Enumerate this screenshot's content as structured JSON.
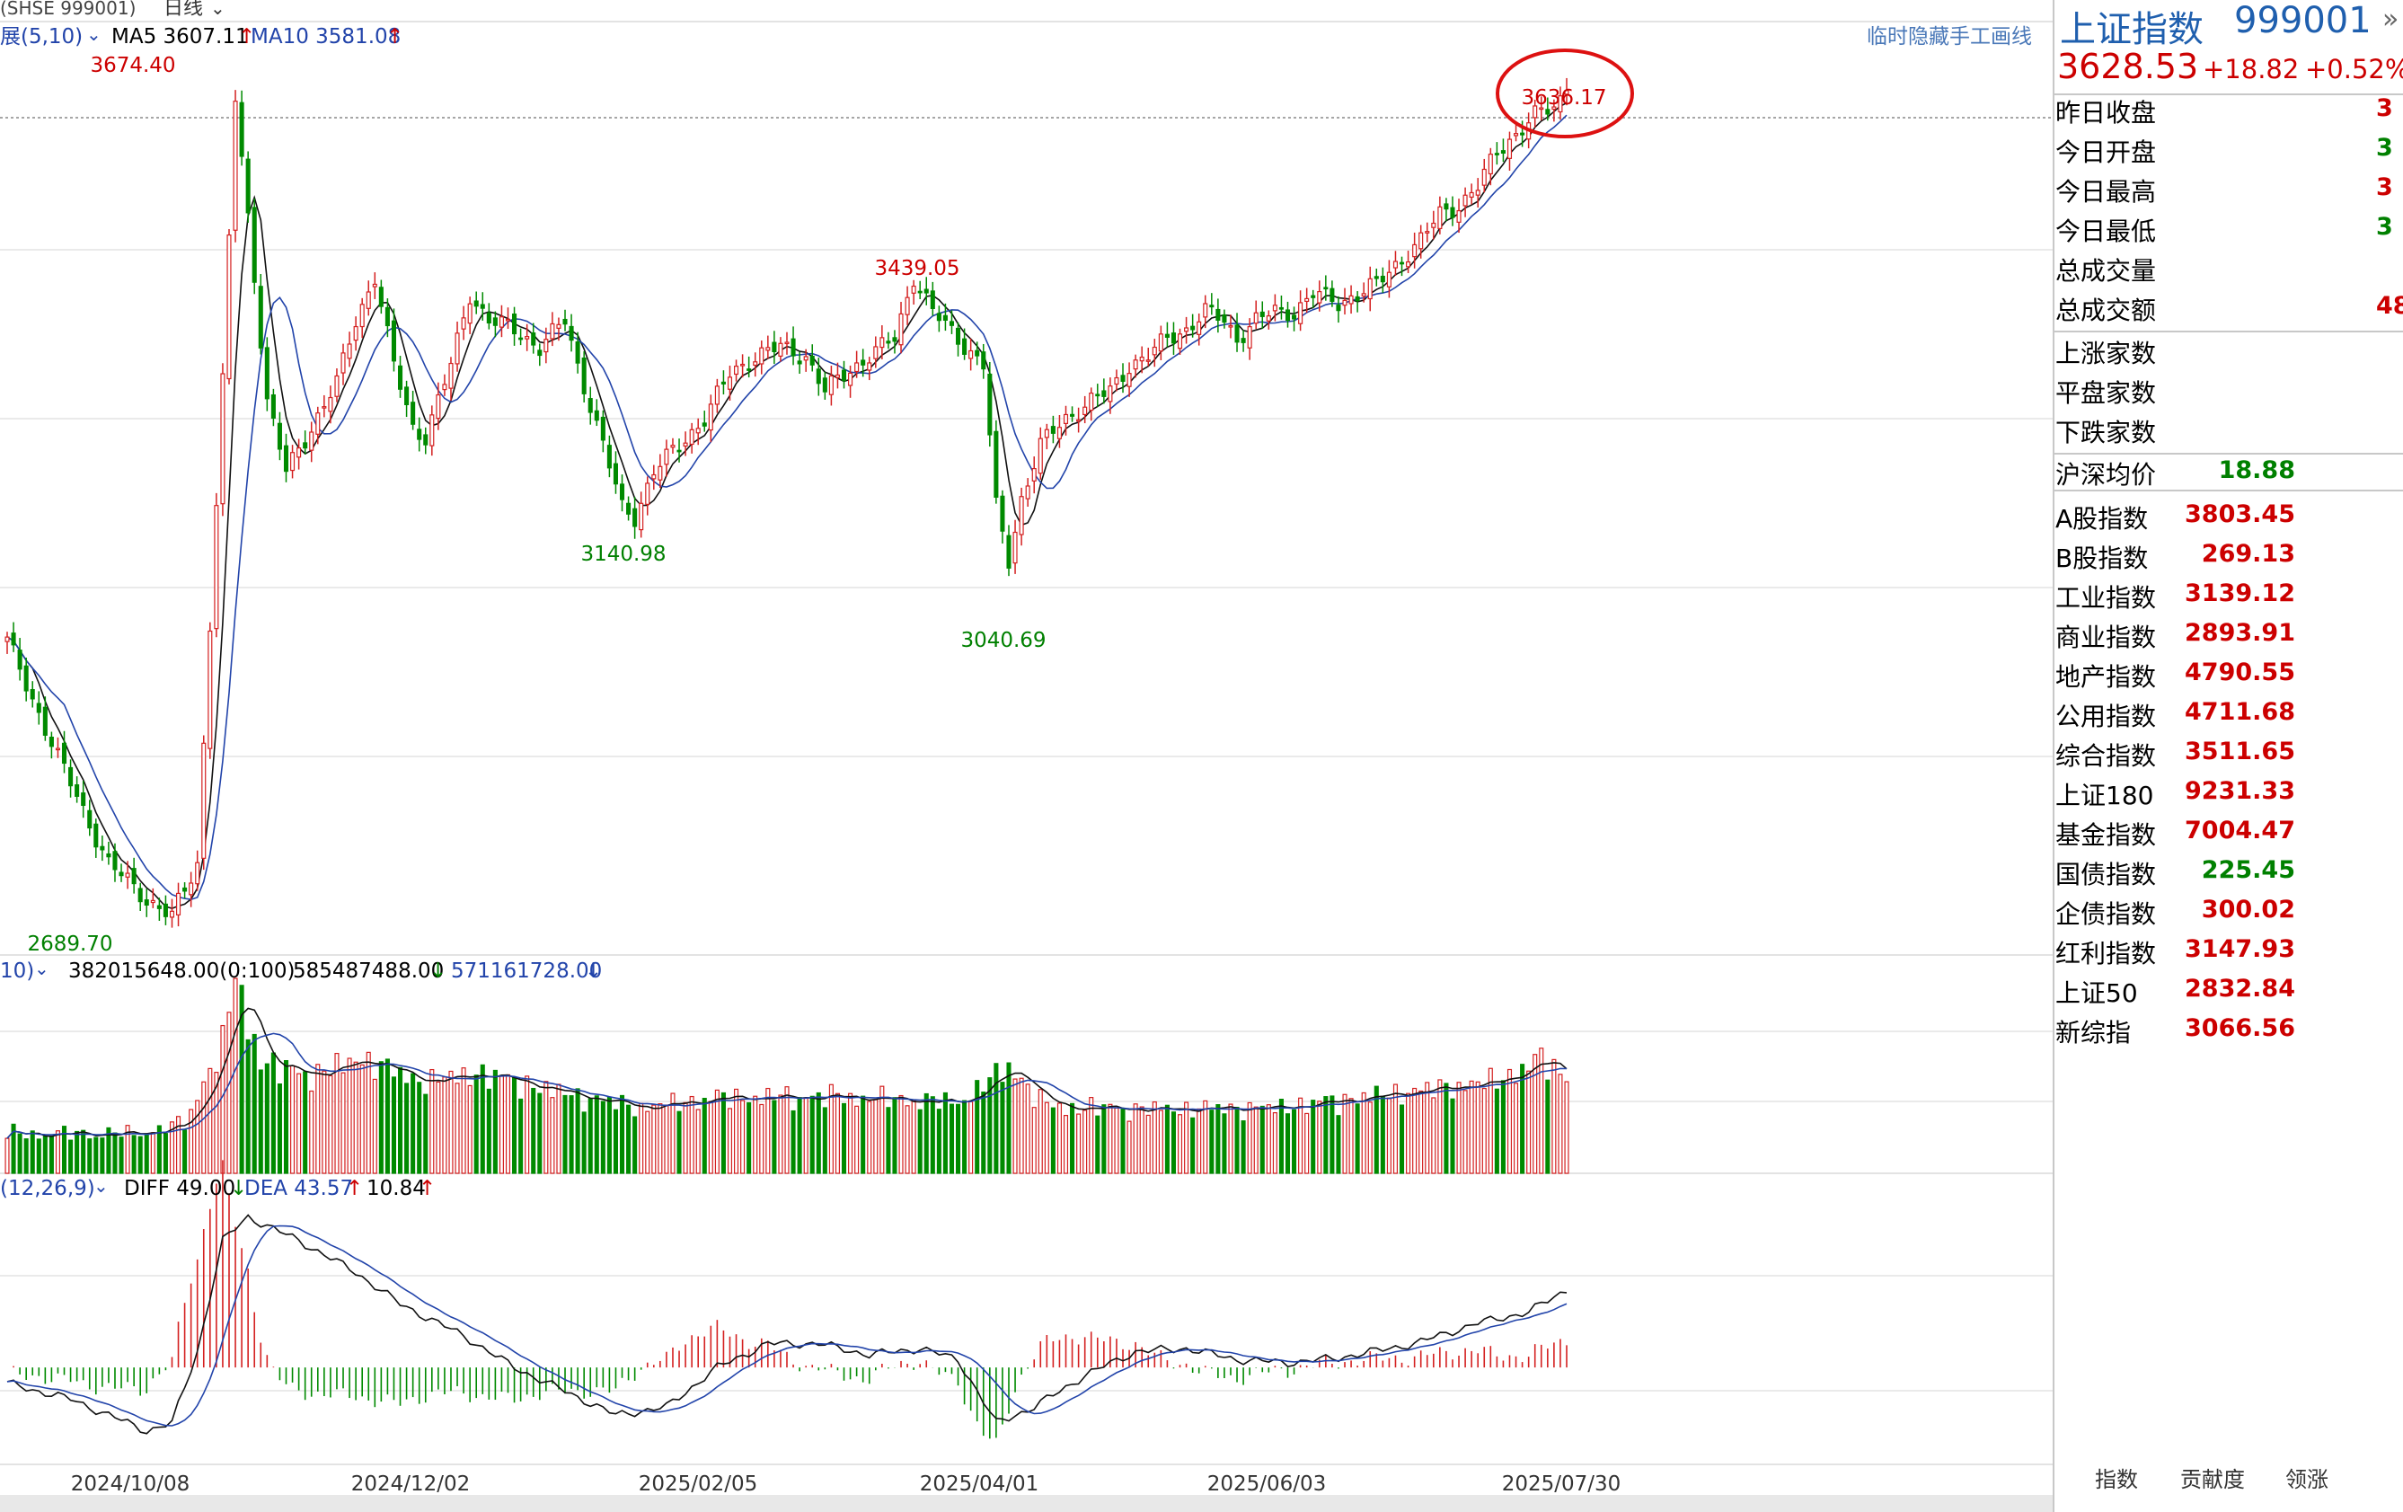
{
  "chart_data": {
    "type": "candlestick",
    "symbol_header": "(SHSE 999001)",
    "period": "日线",
    "main_indicator": "展(5,10)",
    "ma5": "MA5 3607.11",
    "ma10": "MA10 3581.08",
    "hand_draw_hint": "临时隐藏手工画线",
    "annotations": {
      "high_2024": "3674.40",
      "low_2024": "2689.70",
      "low_feb": "3140.98",
      "high_mar": "3439.05",
      "low_apr": "3040.69",
      "latest_high": "3636.17"
    },
    "volume_indicator": "10)",
    "volume_values": [
      "382015648.00(0:100)",
      "585487488.00",
      "571161728.00"
    ],
    "macd_indicator": "(12,26,9)",
    "macd_diff": "DIFF 49.00",
    "macd_dea": "DEA 43.57",
    "macd_value": "10.84",
    "x_labels": [
      "2024/10/08",
      "2024/12/02",
      "2025/02/05",
      "2025/04/01",
      "2025/06/03",
      "2025/07/30"
    ],
    "ylim": [
      2660,
      3700
    ],
    "anchors": [
      [
        0,
        3010
      ],
      [
        8,
        2880
      ],
      [
        16,
        2760
      ],
      [
        22,
        2720
      ],
      [
        26,
        2700
      ],
      [
        30,
        2760
      ],
      [
        34,
        3300
      ],
      [
        36,
        3620
      ],
      [
        39,
        3420
      ],
      [
        41,
        3280
      ],
      [
        44,
        3200
      ],
      [
        48,
        3250
      ],
      [
        52,
        3300
      ],
      [
        55,
        3370
      ],
      [
        58,
        3420
      ],
      [
        61,
        3320
      ],
      [
        64,
        3250
      ],
      [
        66,
        3240
      ],
      [
        70,
        3320
      ],
      [
        73,
        3400
      ],
      [
        76,
        3370
      ],
      [
        80,
        3360
      ],
      [
        84,
        3340
      ],
      [
        88,
        3370
      ],
      [
        90,
        3320
      ],
      [
        94,
        3230
      ],
      [
        97,
        3160
      ],
      [
        99,
        3150
      ],
      [
        102,
        3200
      ],
      [
        106,
        3230
      ],
      [
        110,
        3260
      ],
      [
        114,
        3310
      ],
      [
        118,
        3330
      ],
      [
        122,
        3340
      ],
      [
        126,
        3330
      ],
      [
        129,
        3290
      ],
      [
        132,
        3310
      ],
      [
        136,
        3330
      ],
      [
        140,
        3350
      ],
      [
        143,
        3420
      ],
      [
        146,
        3380
      ],
      [
        150,
        3350
      ],
      [
        154,
        3320
      ],
      [
        156,
        3160
      ],
      [
        158,
        3100
      ],
      [
        160,
        3170
      ],
      [
        163,
        3230
      ],
      [
        167,
        3260
      ],
      [
        171,
        3280
      ],
      [
        174,
        3290
      ],
      [
        177,
        3320
      ],
      [
        180,
        3330
      ],
      [
        183,
        3350
      ],
      [
        186,
        3360
      ],
      [
        189,
        3380
      ],
      [
        192,
        3370
      ],
      [
        194,
        3350
      ],
      [
        197,
        3370
      ],
      [
        200,
        3380
      ],
      [
        203,
        3380
      ],
      [
        206,
        3400
      ],
      [
        210,
        3390
      ],
      [
        213,
        3400
      ],
      [
        216,
        3410
      ],
      [
        220,
        3440
      ],
      [
        223,
        3460
      ],
      [
        226,
        3490
      ],
      [
        229,
        3500
      ],
      [
        232,
        3520
      ],
      [
        235,
        3560
      ],
      [
        238,
        3580
      ],
      [
        241,
        3600
      ],
      [
        244,
        3610
      ],
      [
        246,
        3628.53
      ]
    ],
    "volume_ylim": [
      0,
      1300000000
    ],
    "volume_anchors": [
      [
        0,
        240000000
      ],
      [
        20,
        240000000
      ],
      [
        28,
        300000000
      ],
      [
        34,
        800000000
      ],
      [
        36,
        1200000000
      ],
      [
        40,
        680000000
      ],
      [
        48,
        600000000
      ],
      [
        56,
        700000000
      ],
      [
        65,
        560000000
      ],
      [
        75,
        610000000
      ],
      [
        90,
        470000000
      ],
      [
        100,
        400000000
      ],
      [
        112,
        460000000
      ],
      [
        130,
        470000000
      ],
      [
        150,
        430000000
      ],
      [
        158,
        650000000
      ],
      [
        164,
        410000000
      ],
      [
        180,
        390000000
      ],
      [
        200,
        400000000
      ],
      [
        215,
        470000000
      ],
      [
        235,
        560000000
      ],
      [
        242,
        700000000
      ],
      [
        246,
        585000000
      ]
    ],
    "macd_ylim": [
      -60,
      110
    ],
    "macd_anchors": [
      [
        0,
        -10
      ],
      [
        10,
        -20
      ],
      [
        22,
        -40
      ],
      [
        26,
        -35
      ],
      [
        30,
        10
      ],
      [
        34,
        80
      ],
      [
        38,
        95
      ],
      [
        46,
        80
      ],
      [
        55,
        60
      ],
      [
        62,
        40
      ],
      [
        72,
        20
      ],
      [
        80,
        0
      ],
      [
        88,
        -15
      ],
      [
        96,
        -30
      ],
      [
        104,
        -25
      ],
      [
        112,
        0
      ],
      [
        120,
        15
      ],
      [
        128,
        15
      ],
      [
        136,
        8
      ],
      [
        144,
        12
      ],
      [
        150,
        5
      ],
      [
        156,
        -35
      ],
      [
        162,
        -25
      ],
      [
        170,
        -5
      ],
      [
        178,
        10
      ],
      [
        186,
        12
      ],
      [
        194,
        5
      ],
      [
        202,
        3
      ],
      [
        210,
        6
      ],
      [
        222,
        15
      ],
      [
        232,
        28
      ],
      [
        240,
        35
      ],
      [
        246,
        49
      ]
    ]
  },
  "sidebar": {
    "title": "上证指数",
    "code": "999001",
    "collapse_glyph": "»",
    "price": "3628.53",
    "change": "+18.82",
    "change_pct": "+0.52%",
    "stats": [
      {
        "label": "昨日收盘",
        "value": "3"
      },
      {
        "label": "今日开盘",
        "value": "3"
      },
      {
        "label": "今日最高",
        "value": "3"
      },
      {
        "label": "今日最低",
        "value": "3"
      },
      {
        "label": "总成交量",
        "value": ""
      },
      {
        "label": "总成交额",
        "value": "48"
      }
    ],
    "breadth": [
      {
        "label": "上涨家数",
        "value": ""
      },
      {
        "label": "平盘家数",
        "value": ""
      },
      {
        "label": "下跌家数",
        "value": ""
      }
    ],
    "avg_label": "沪深均价",
    "avg_value": "18.88",
    "indices": [
      {
        "label": "A股指数",
        "value": "3803.45",
        "color": "#cc0000"
      },
      {
        "label": "B股指数",
        "value": "269.13",
        "color": "#cc0000"
      },
      {
        "label": "工业指数",
        "value": "3139.12",
        "color": "#cc0000"
      },
      {
        "label": "商业指数",
        "value": "2893.91",
        "color": "#cc0000"
      },
      {
        "label": "地产指数",
        "value": "4790.55",
        "color": "#cc0000"
      },
      {
        "label": "公用指数",
        "value": "4711.68",
        "color": "#cc0000"
      },
      {
        "label": "综合指数",
        "value": "3511.65",
        "color": "#cc0000"
      },
      {
        "label": "上证180",
        "value": "9231.33",
        "color": "#cc0000"
      },
      {
        "label": "基金指数",
        "value": "7004.47",
        "color": "#cc0000"
      },
      {
        "label": "国债指数",
        "value": "225.45",
        "color": "#008000"
      },
      {
        "label": "企债指数",
        "value": "300.02",
        "color": "#cc0000"
      },
      {
        "label": "红利指数",
        "value": "3147.93",
        "color": "#cc0000"
      },
      {
        "label": "上证50",
        "value": "2832.84",
        "color": "#cc0000"
      },
      {
        "label": "新综指",
        "value": "3066.56",
        "color": "#cc0000"
      }
    ],
    "tabs": [
      "指数",
      "贡献度",
      "领涨"
    ]
  },
  "colors": {
    "up": "#d42020",
    "down": "#008a00",
    "ma": "#2244aa",
    "sidebar_title": "#1f5fae",
    "price_up": "#cc0000"
  }
}
